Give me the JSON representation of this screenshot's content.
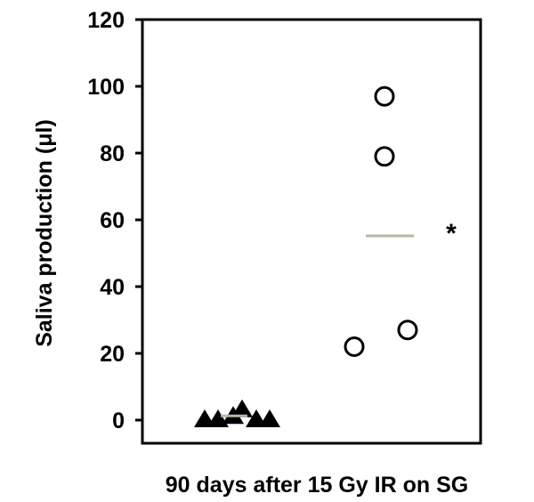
{
  "chart_data": {
    "type": "scatter",
    "title": "",
    "xlabel": "90 days after 15 Gy IR on SG",
    "ylabel": "Saliva production (μl)",
    "ylim": [
      0,
      120
    ],
    "yticks": [
      "0",
      "20",
      "40",
      "60",
      "80",
      "100",
      "120"
    ],
    "grid": false,
    "legend": "none",
    "series": [
      {
        "marker": "filled-triangle",
        "color": "#000000",
        "values": [
          0,
          0,
          1,
          3,
          0,
          0
        ],
        "mean": 1
      },
      {
        "marker": "open-circle",
        "color": "#000000",
        "values": [
          97,
          79,
          22,
          27
        ],
        "mean": 56
      }
    ],
    "mean_line_color": "#b8b8a8",
    "annotation": "*"
  }
}
